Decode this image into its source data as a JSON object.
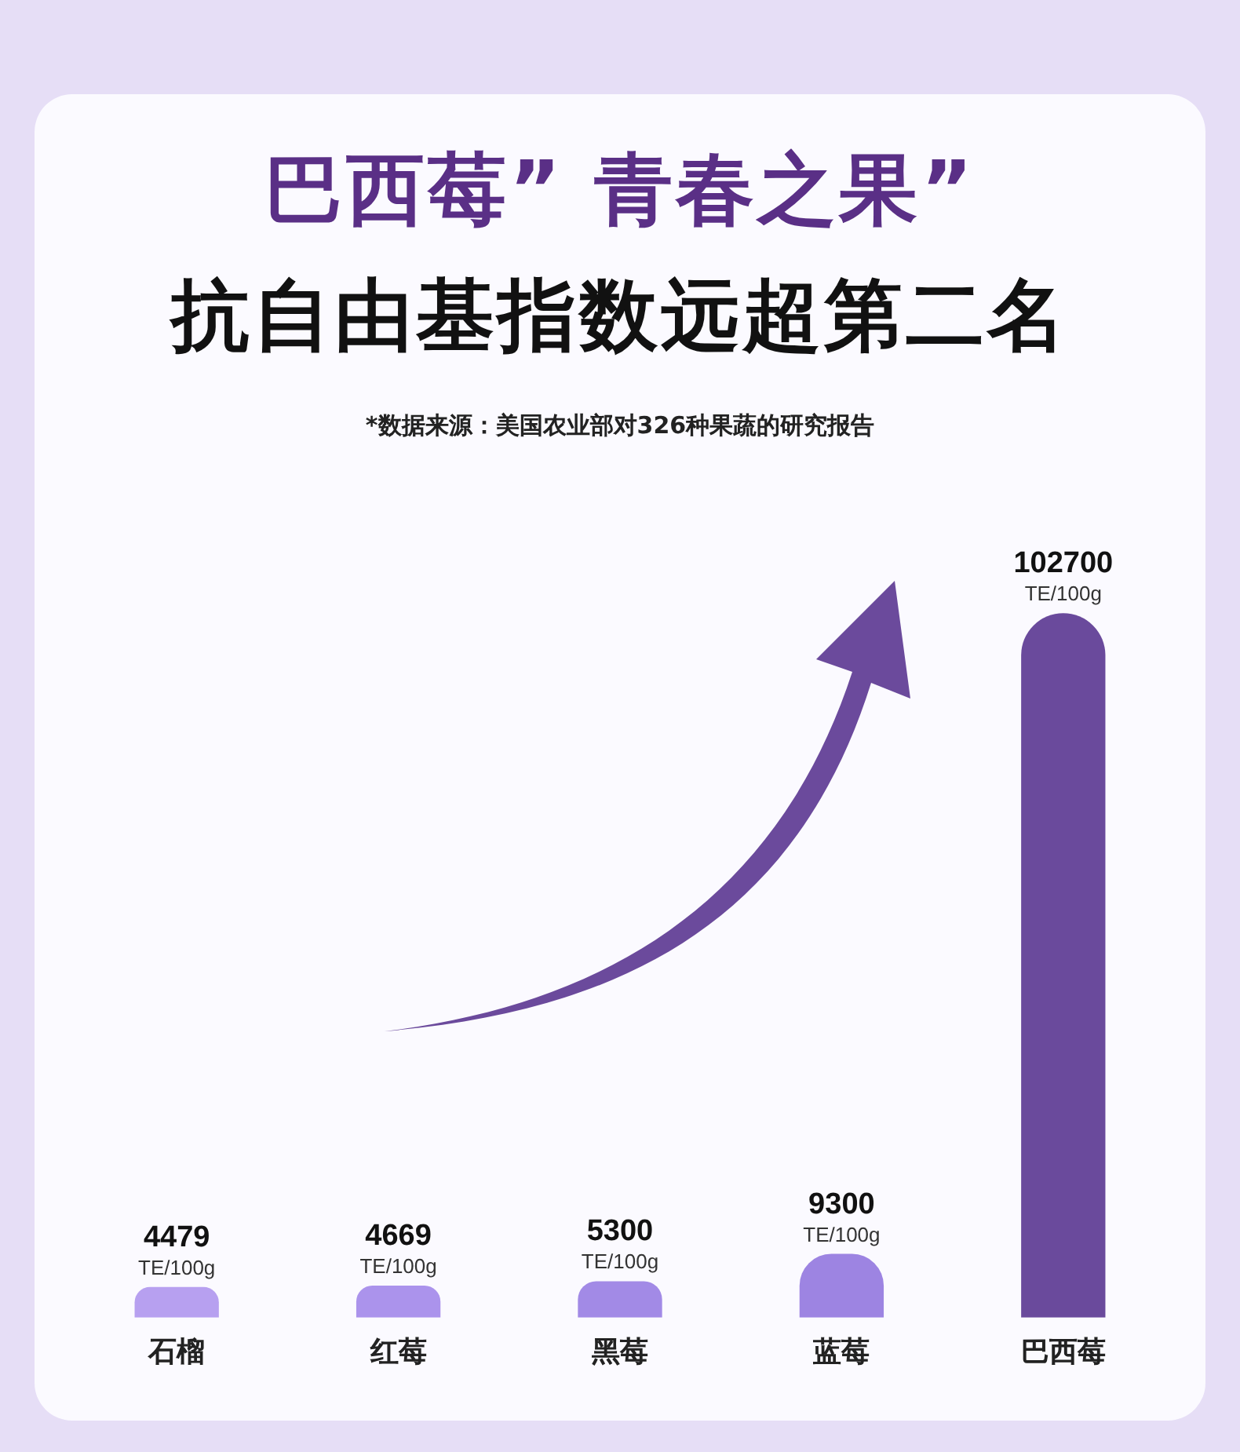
{
  "chart_data": {
    "type": "bar",
    "title": "巴西莓” 青春之果”",
    "subtitle": "抗自由基指数远超第二名",
    "annotations": [
      "*数据来源：美国农业部对326种果蔬的研究报告"
    ],
    "categories": [
      "石榴",
      "红莓",
      "黑莓",
      "蓝莓",
      "巴西莓"
    ],
    "values": [
      4479,
      4669,
      5300,
      9300,
      102700
    ],
    "colors": [
      "#b7a0f0",
      "#ab93ec",
      "#a28ae6",
      "#9d84e2",
      "#6a4a9c"
    ],
    "value_labels": [
      "4479 TE/100g",
      "4669 TE/100g",
      "5300 TE/100g",
      "9300 TE/100g",
      "102700 TE/100g"
    ],
    "relative": false,
    "grid": false,
    "legend": false
  }
}
